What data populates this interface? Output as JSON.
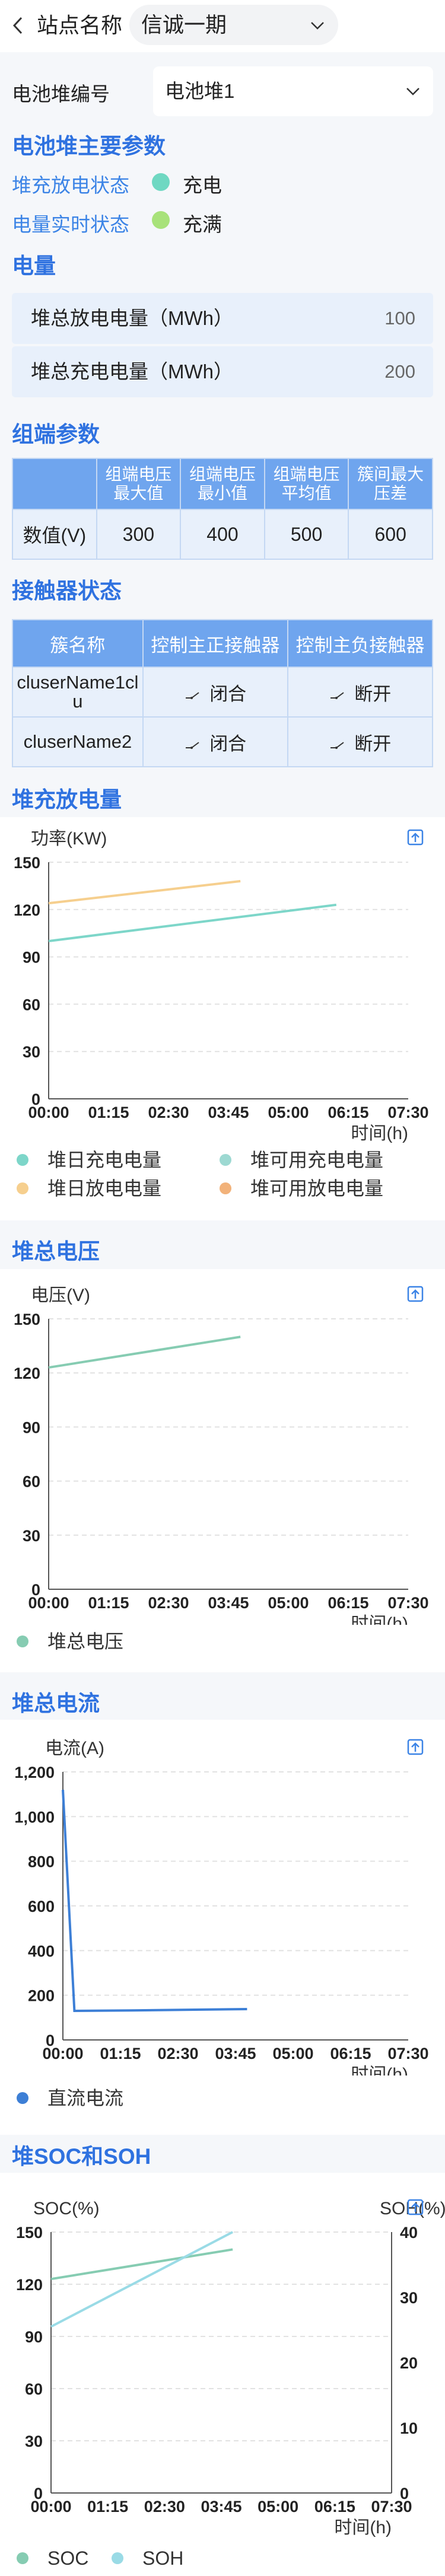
{
  "header": {
    "site_label": "站点名称",
    "site_value": "信诚一期"
  },
  "stack": {
    "label": "电池堆编号",
    "value": "电池堆1"
  },
  "main_params": {
    "title": "电池堆主要参数",
    "charge_state_label": "堆充放电状态",
    "charge_state_value": "充电",
    "charge_state_color": "#6fd8c2",
    "soc_state_label": "电量实时状态",
    "soc_state_value": "充满",
    "soc_state_color": "#a8e27a"
  },
  "energy": {
    "title": "电量",
    "rows": [
      {
        "label": "堆总放电电量（MWh）",
        "value": "100"
      },
      {
        "label": "堆总充电电量（MWh）",
        "value": "200"
      }
    ]
  },
  "cluster_params": {
    "title": "组端参数",
    "headers": [
      "",
      "组端电压最大值",
      "组端电压最小值",
      "组端电压平均值",
      "簇间最大压差"
    ],
    "row_label": "数值(V)",
    "values": [
      "300",
      "400",
      "500",
      "600"
    ]
  },
  "contactor": {
    "title": "接触器状态",
    "headers": [
      "簇名称",
      "控制主正接触器",
      "控制主负接触器"
    ],
    "rows": [
      {
        "name": "cluserName1clu",
        "pos": "闭合",
        "neg": "断开"
      },
      {
        "name": "cluserName2",
        "pos": "闭合",
        "neg": "断开"
      }
    ]
  },
  "charts": {
    "power": {
      "title": "堆充放电量",
      "legend": [
        "堆日充电电量",
        "堆可用充电电量",
        "堆日放电电量",
        "堆可用放电电量"
      ]
    },
    "voltage": {
      "title": "堆总电压",
      "legend": [
        "堆总电压"
      ]
    },
    "current": {
      "title": "堆总电流",
      "legend": [
        "直流电流"
      ]
    },
    "soc": {
      "title": "堆SOC和SOH",
      "legend": [
        "SOC",
        "SOH"
      ]
    }
  },
  "chart_data": [
    {
      "type": "line",
      "ylabel": "功率(KW)",
      "xlabel": "时间(h)",
      "x_ticks": [
        "00:00",
        "01:15",
        "02:30",
        "03:45",
        "05:00",
        "06:15",
        "07:30"
      ],
      "ylim": [
        0,
        150
      ],
      "y_ticks": [
        0,
        30,
        60,
        90,
        120,
        150
      ],
      "series": [
        {
          "name": "堆日充电电量",
          "color": "#7dd6c9",
          "points": [
            [
              0,
              100
            ],
            [
              6.0,
              123
            ]
          ]
        },
        {
          "name": "堆可用充电电量",
          "color": "#9dd9d2",
          "points": []
        },
        {
          "name": "堆日放电电量",
          "color": "#f6cf8e",
          "points": [
            [
              0,
              124
            ],
            [
              4.0,
              138
            ]
          ]
        },
        {
          "name": "堆可用放电电量",
          "color": "#f2b27a",
          "points": []
        }
      ]
    },
    {
      "type": "line",
      "ylabel": "电压(V)",
      "xlabel": "时间(h)",
      "x_ticks": [
        "00:00",
        "01:15",
        "02:30",
        "03:45",
        "05:00",
        "06:15",
        "07:30"
      ],
      "ylim": [
        0,
        150
      ],
      "y_ticks": [
        0,
        30,
        60,
        90,
        120,
        150
      ],
      "series": [
        {
          "name": "堆总电压",
          "color": "#86ccb2",
          "points": [
            [
              0,
              123
            ],
            [
              4.0,
              140
            ]
          ]
        }
      ]
    },
    {
      "type": "line",
      "ylabel": "电流(A)",
      "xlabel": "时间(h)",
      "x_ticks": [
        "00:00",
        "01:15",
        "02:30",
        "03:45",
        "05:00",
        "06:15",
        "07:30"
      ],
      "ylim": [
        0,
        1200
      ],
      "y_ticks": [
        0,
        200,
        400,
        600,
        800,
        1000,
        1200
      ],
      "series": [
        {
          "name": "直流电流",
          "color": "#3d7fd6",
          "points": [
            [
              0,
              1120
            ],
            [
              0.25,
              130
            ],
            [
              1.5,
              132
            ],
            [
              4.0,
              138
            ]
          ]
        }
      ]
    },
    {
      "type": "line",
      "ylabel": "SOC(%)",
      "y2label": "SOH(%)",
      "xlabel": "时间(h)",
      "x_ticks": [
        "00:00",
        "01:15",
        "02:30",
        "03:45",
        "05:00",
        "06:15",
        "07:30"
      ],
      "ylim": [
        0,
        150
      ],
      "y_ticks": [
        0,
        30,
        60,
        90,
        120,
        150
      ],
      "y2lim": [
        0,
        40
      ],
      "y2_ticks": [
        0,
        10,
        20,
        30,
        40
      ],
      "series": [
        {
          "name": "SOC",
          "color": "#86ccb2",
          "axis": "left",
          "points": [
            [
              0,
              123
            ],
            [
              4.0,
              140
            ]
          ]
        },
        {
          "name": "SOH",
          "color": "#9adbe6",
          "axis": "right",
          "points": [
            [
              0,
              25.5
            ],
            [
              4.0,
              40
            ]
          ]
        }
      ]
    }
  ]
}
